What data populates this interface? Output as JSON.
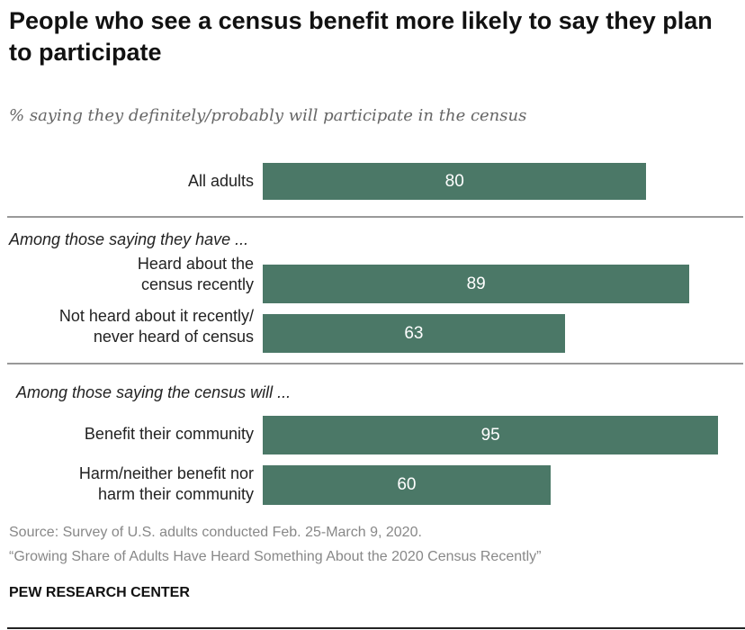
{
  "chart_data": {
    "type": "bar",
    "orientation": "horizontal",
    "title": "People who see a census benefit more likely to say they plan to participate",
    "subtitle": "% saying they definitely/probably will participate in the census",
    "xlim": [
      0,
      100
    ],
    "color": "#4b7867",
    "groups": [
      {
        "heading": "",
        "items": [
          {
            "label": "All adults",
            "value": 80
          }
        ]
      },
      {
        "heading": "Among those saying they have ...",
        "items": [
          {
            "label": "Heard about the census recently",
            "lines": [
              "Heard about the",
              "census recently"
            ],
            "value": 89
          },
          {
            "label": "Not heard about it recently/ never heard of census",
            "lines": [
              "Not heard about it recently/",
              "never heard of census"
            ],
            "value": 63
          }
        ]
      },
      {
        "heading": "Among those saying the census will ...",
        "items": [
          {
            "label": "Benefit their community",
            "lines": [
              "Benefit their community"
            ],
            "value": 95
          },
          {
            "label": "Harm/neither benefit nor harm their community",
            "lines": [
              "Harm/neither benefit nor",
              "harm their community"
            ],
            "value": 60
          }
        ]
      }
    ]
  },
  "footer": {
    "source": "Source: Survey of U.S. adults conducted Feb. 25-March 9, 2020.",
    "report": "“Growing Share of Adults Have Heard Something About the 2020 Census Recently”",
    "brand": "PEW RESEARCH CENTER"
  }
}
